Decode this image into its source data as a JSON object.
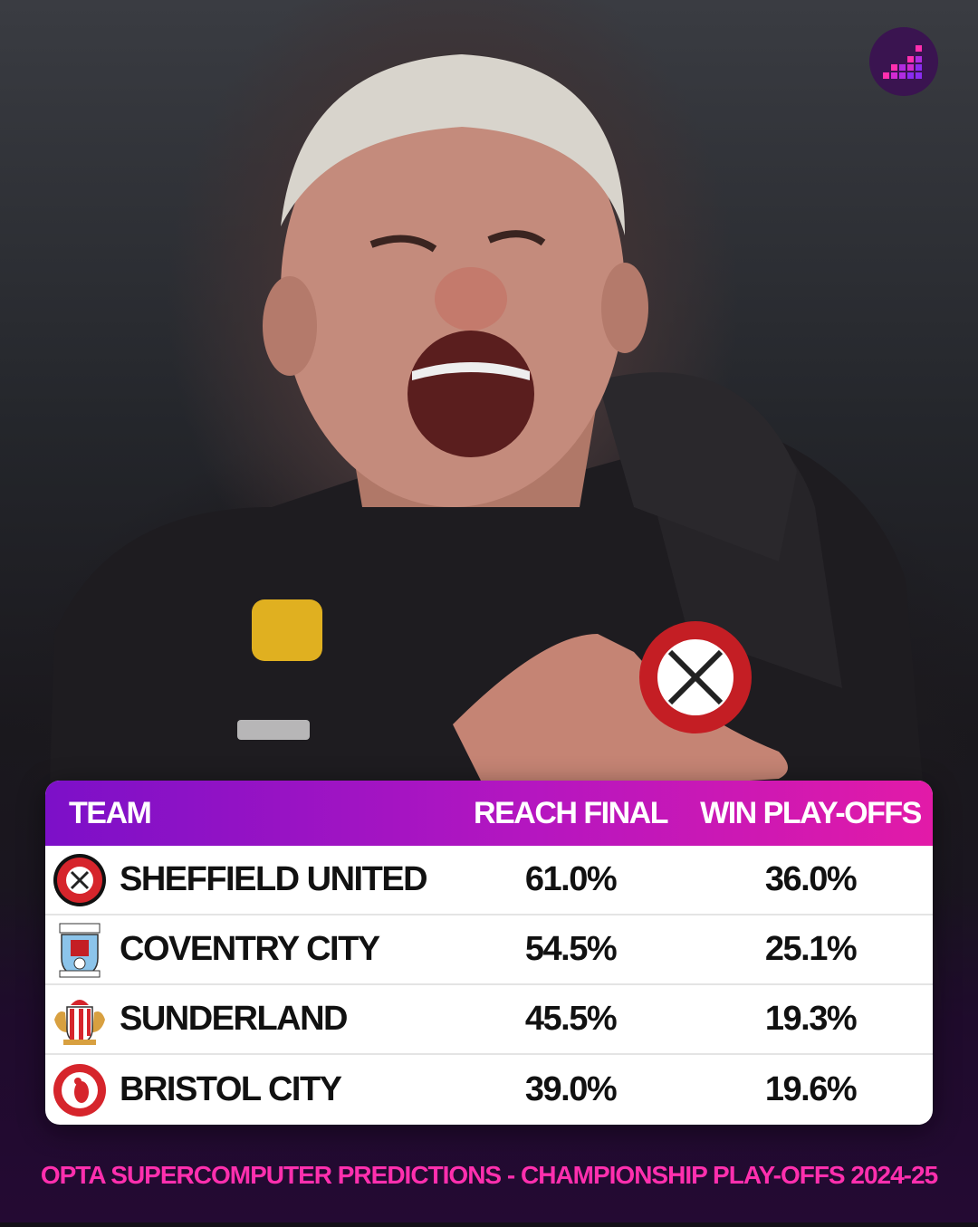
{
  "brand": {
    "logo_icon": "opta-analyst-logo-icon",
    "accent": "#e21aa8",
    "header_gradient": [
      "#7c10c8",
      "#e21aa8"
    ]
  },
  "photo": {
    "subject": "manager-photo"
  },
  "table": {
    "headers": {
      "team": "TEAM",
      "reach_final": "REACH FINAL",
      "win_playoffs": "WIN PLAY-OFFS"
    },
    "rows": [
      {
        "badge_icon": "sheffield-united-crest-icon",
        "team": "SHEFFIELD UNITED",
        "reach_final": "61.0%",
        "win_playoffs": "36.0%"
      },
      {
        "badge_icon": "coventry-city-crest-icon",
        "team": "COVENTRY CITY",
        "reach_final": "54.5%",
        "win_playoffs": "25.1%"
      },
      {
        "badge_icon": "sunderland-crest-icon",
        "team": "SUNDERLAND",
        "reach_final": "45.5%",
        "win_playoffs": "19.3%"
      },
      {
        "badge_icon": "bristol-city-crest-icon",
        "team": "BRISTOL CITY",
        "reach_final": "39.0%",
        "win_playoffs": "19.6%"
      }
    ]
  },
  "footer": {
    "caption": "OPTA SUPERCOMPUTER PREDICTIONS - CHAMPIONSHIP PLAY-OFFS 2024-25"
  }
}
